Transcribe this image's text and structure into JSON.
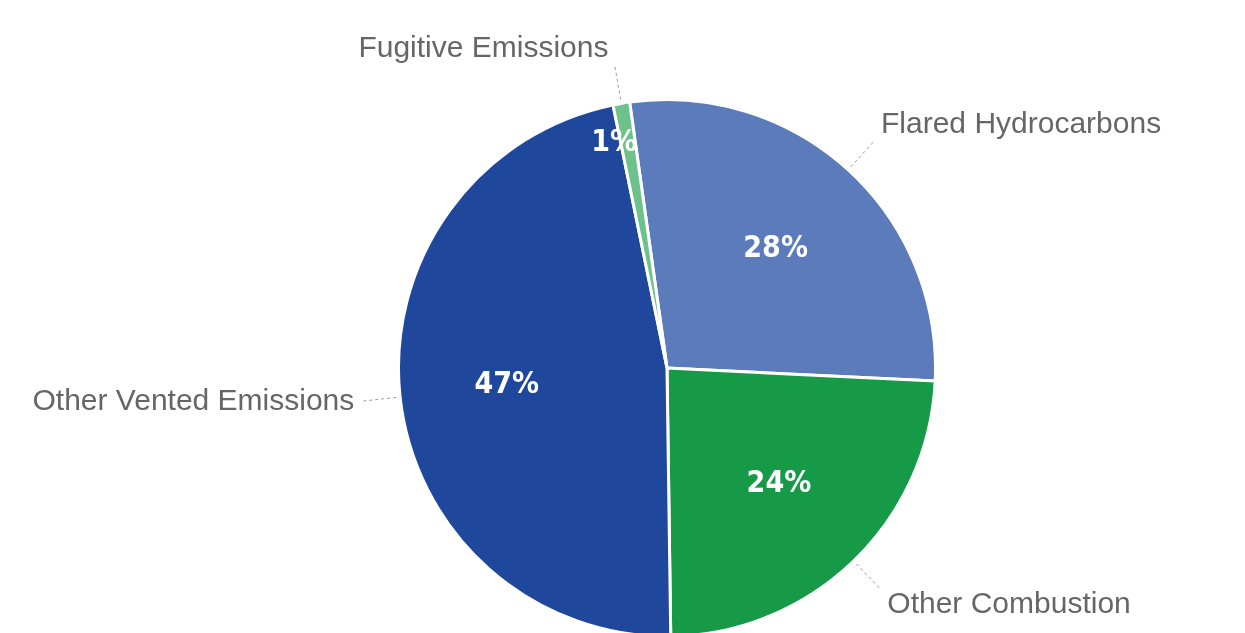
{
  "chart_data": {
    "type": "pie",
    "categories": [
      "Flared Hydrocarbons",
      "Other Combustion",
      "Other Vented Emissions",
      "Fugitive Emissions"
    ],
    "values": [
      28,
      24,
      47,
      1
    ],
    "value_labels": [
      "28%",
      "24%",
      "47%",
      "1%"
    ],
    "colors": [
      "#5b7bba",
      "#169a48",
      "#1f479c",
      "#6cc28a"
    ],
    "legend": false
  }
}
